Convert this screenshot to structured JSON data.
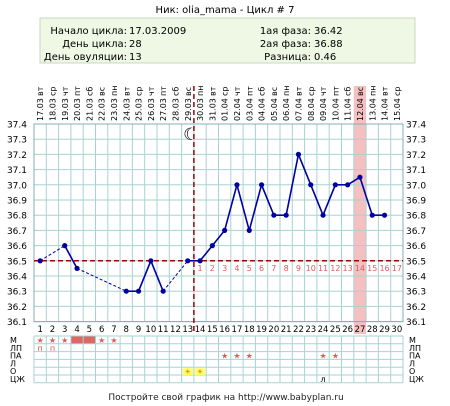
{
  "header": {
    "title": "Ник: olia_mama - Цикл # 7",
    "cycle_start_label": "Начало цикла:",
    "cycle_start_value": "17.03.2009",
    "cycle_day_label": "День цикла:",
    "cycle_day_value": "28",
    "ovulation_day_label": "День овуляции:",
    "ovulation_day_value": "13",
    "phase1_label": "1ая фаза:",
    "phase1_value": "36.42",
    "phase2_label": "2ая фаза:",
    "phase2_value": "36.88",
    "diff_label": "Разница:",
    "diff_value": "0.46"
  },
  "footer": "Постройте свой график на http://www.babyplan.ru",
  "colors": {
    "grid": "#a8d2d2",
    "line": "#0000a0",
    "coverline": "#a00000",
    "ovulation_line": "#a00000",
    "highlight": "#f4c0c0",
    "header_bg": "#eef8e4",
    "period_fill": "#e06666",
    "star": "#e05a5a",
    "day_number_after_ovulation": "#e05a5a"
  },
  "chart_data": {
    "type": "line",
    "weekdays": [
      "вт",
      "ср",
      "чт",
      "пт",
      "сб",
      "вс",
      "пн",
      "вт",
      "ср",
      "чт",
      "пт",
      "сб",
      "вс",
      "пн",
      "вт",
      "ср",
      "чт",
      "пт",
      "сб",
      "вс",
      "пн",
      "вт",
      "ср",
      "чт",
      "пт",
      "сб",
      "вс",
      "пн",
      "вт",
      "ср"
    ],
    "dates": [
      "17.03",
      "18.03",
      "19.03",
      "20.03",
      "21.03",
      "22.03",
      "23.03",
      "24.03",
      "25.03",
      "26.03",
      "27.03",
      "28.03",
      "29.03",
      "30.03",
      "31.03",
      "01.04",
      "02.04",
      "03.04",
      "04.04",
      "05.04",
      "06.04",
      "07.04",
      "08.04",
      "09.04",
      "10.04",
      "11.04",
      "12.04",
      "13.04",
      "14.04",
      "15.04"
    ],
    "days": [
      1,
      2,
      3,
      4,
      5,
      6,
      7,
      8,
      9,
      10,
      11,
      12,
      13,
      14,
      15,
      16,
      17,
      18,
      19,
      20,
      21,
      22,
      23,
      24,
      25,
      26,
      27,
      28,
      29,
      30
    ],
    "post_ovulation_numbers": [
      "1",
      "2",
      "3",
      "4",
      "5",
      "6",
      "7",
      "8",
      "9",
      "10",
      "11",
      "12",
      "13",
      "14",
      "15",
      "16",
      "17"
    ],
    "y_ticks": [
      "37.4",
      "37.3",
      "37.2",
      "37.1",
      "37.0",
      "36.9",
      "36.8",
      "36.7",
      "36.6",
      "36.5",
      "36.4",
      "36.3",
      "36.2",
      "36.1"
    ],
    "ylim": [
      36.1,
      37.4
    ],
    "temperatures": [
      36.5,
      null,
      36.6,
      36.45,
      null,
      null,
      null,
      36.3,
      36.3,
      36.5,
      36.3,
      null,
      36.5,
      36.5,
      36.6,
      36.7,
      37.0,
      36.7,
      37.0,
      36.8,
      36.8,
      37.2,
      37.0,
      36.8,
      37.0,
      37.0,
      37.05,
      36.8,
      36.8,
      null
    ],
    "coverline": 36.5,
    "ovulation_day": 13,
    "highlight_day": 27,
    "moon_day": 13,
    "row_labels": [
      "М",
      "ЛП",
      "ПА",
      "Л",
      "О",
      "ЦЖ"
    ],
    "rows": {
      "M_period": [
        4,
        5
      ],
      "M_stars": [
        1,
        2,
        3,
        6,
        7
      ],
      "LP_p": [
        1,
        2
      ],
      "PA_stars": [
        16,
        17,
        18,
        24,
        25
      ],
      "O_suns": [
        13,
        14
      ],
      "CZh_l": [
        24
      ]
    },
    "marks": {
      "star": "★",
      "p": "п",
      "sun": "☀",
      "l": "л",
      "moon": "☾"
    }
  }
}
